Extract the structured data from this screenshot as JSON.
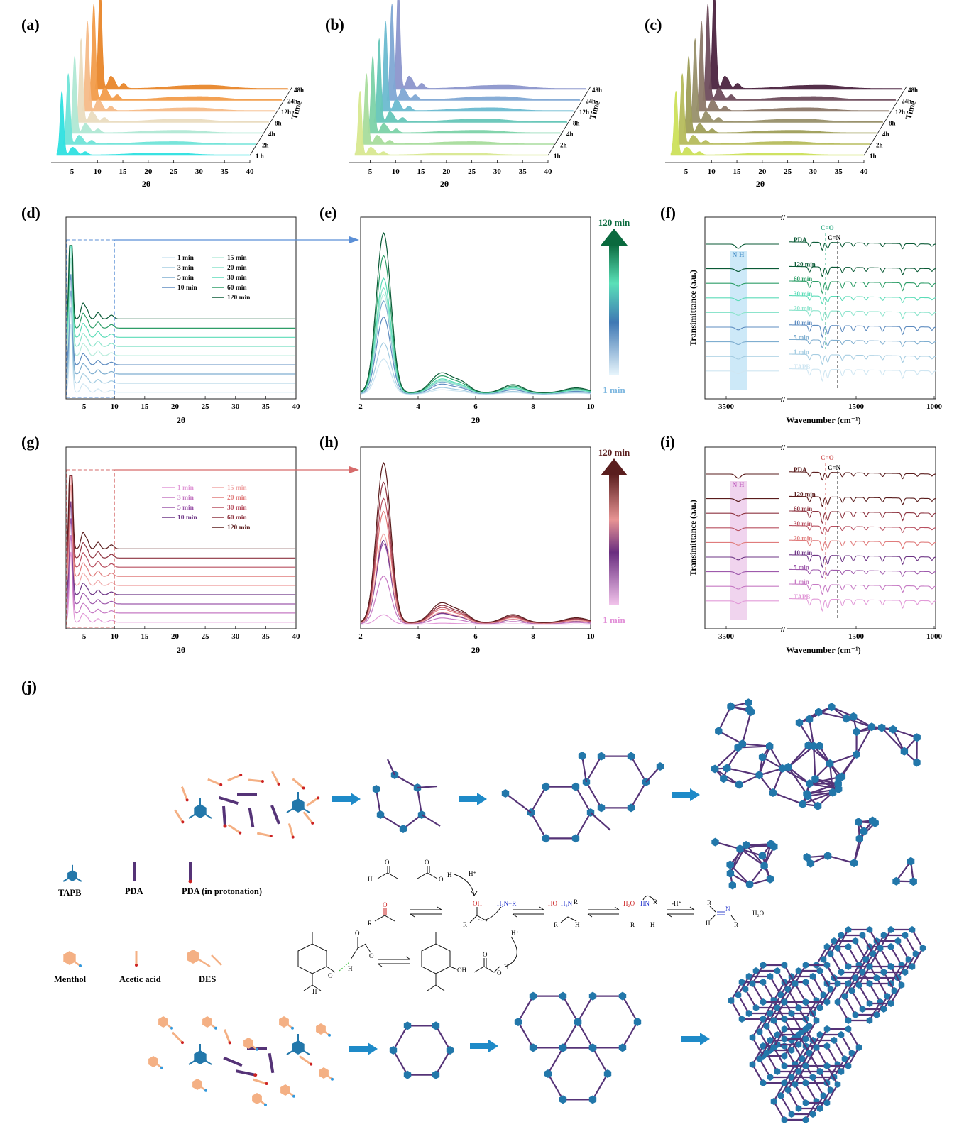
{
  "panels": {
    "a": "(a)",
    "b": "(b)",
    "c": "(c)",
    "d": "(d)",
    "e": "(e)",
    "f": "(f)",
    "g": "(g)",
    "h": "(h)",
    "i": "(i)",
    "j": "(j)"
  },
  "colors": {
    "a": [
      "#2ee0e0",
      "#70e4d8",
      "#b0e8d4",
      "#eadcc0",
      "#f6bb88",
      "#f29c4a",
      "#e8862a"
    ],
    "b": [
      "#d8e890",
      "#a8dc9c",
      "#7cd2a8",
      "#66c6b8",
      "#6cbad0",
      "#80a8d4",
      "#8c96cc"
    ],
    "c": [
      "#cce05a",
      "#b6bc5c",
      "#9e9e58",
      "#98906a",
      "#8c7868",
      "#6e4c5c",
      "#4c2440"
    ],
    "d": [
      "#cfe6f2",
      "#a6cde2",
      "#7faed0",
      "#5e8cc0",
      "#b8ecdc",
      "#8ce4cc",
      "#5cdcb8",
      "#2e9e68",
      "#0a5a36"
    ],
    "g": [
      "#e29ad8",
      "#c67ac4",
      "#9e5aac",
      "#6e3686",
      "#f0a8a8",
      "#e07c7c",
      "#b85060",
      "#8e3440",
      "#5a1c1c"
    ],
    "scheme_blue": "#2277aa",
    "scheme_purple": "#553377",
    "scheme_orange": "#f4b084",
    "scheme_arrow": "#1e8ac8"
  },
  "chart_data": [
    {
      "id": "a",
      "type": "line",
      "title": "(a)",
      "xlabel": "2θ",
      "ylabel": "Time",
      "xlim": [
        2,
        40
      ],
      "x_ticks": [
        "5",
        "10",
        "15",
        "20",
        "25",
        "30",
        "35",
        "40"
      ],
      "series": [
        {
          "name": "1 h"
        },
        {
          "name": "2h"
        },
        {
          "name": "4h"
        },
        {
          "name": "8h"
        },
        {
          "name": "12h"
        },
        {
          "name": "24h"
        },
        {
          "name": "48h"
        }
      ]
    },
    {
      "id": "b",
      "type": "line",
      "title": "(b)",
      "xlabel": "2θ",
      "ylabel": "Time",
      "xlim": [
        2,
        40
      ],
      "x_ticks": [
        "5",
        "10",
        "15",
        "20",
        "25",
        "30",
        "35",
        "40"
      ],
      "series": [
        {
          "name": "1h"
        },
        {
          "name": "2h"
        },
        {
          "name": "4h"
        },
        {
          "name": "8h"
        },
        {
          "name": "12h"
        },
        {
          "name": "24h"
        },
        {
          "name": "48h"
        }
      ]
    },
    {
      "id": "c",
      "type": "line",
      "title": "(c)",
      "xlabel": "2θ",
      "ylabel": "Time",
      "xlim": [
        2,
        40
      ],
      "x_ticks": [
        "5",
        "10",
        "15",
        "20",
        "25",
        "30",
        "35",
        "40"
      ],
      "series": [
        {
          "name": "1h"
        },
        {
          "name": "2h"
        },
        {
          "name": "4h"
        },
        {
          "name": "8h"
        },
        {
          "name": "12h"
        },
        {
          "name": "24h"
        },
        {
          "name": "48h"
        }
      ]
    },
    {
      "id": "d",
      "type": "line",
      "title": "(d)",
      "xlabel": "2θ",
      "xlim": [
        2,
        40
      ],
      "x_ticks": [
        "5",
        "10",
        "15",
        "20",
        "25",
        "30",
        "35",
        "40"
      ],
      "legend": [
        "1 min",
        "3 min",
        "5 min",
        "10 min",
        "15 min",
        "20 min",
        "30 min",
        "60 min",
        "120 min"
      ]
    },
    {
      "id": "e",
      "type": "line",
      "title": "(e)",
      "xlabel": "2θ",
      "xlim": [
        2,
        10
      ],
      "x_ticks": [
        "2",
        "4",
        "6",
        "8",
        "10"
      ],
      "scale_top": "120 min",
      "scale_bottom": "1 min",
      "peak_heights": [
        0.22,
        0.32,
        0.58,
        0.48,
        0.62,
        0.66,
        0.72,
        0.86,
        1.0
      ]
    },
    {
      "id": "f",
      "type": "line",
      "title": "(f)",
      "xlabel": "Wavenumber (cm⁻¹)",
      "ylabel": "Transimittance (a.u.)",
      "x_ticks": [
        "3500",
        "1500",
        "1000"
      ],
      "labels": [
        "PDA",
        "120 min",
        "60 min",
        "30 min",
        "20 min",
        "10 min",
        "5 min",
        "1 min",
        "TAPB"
      ],
      "annotations": [
        "N-H",
        "C=O",
        "C=N"
      ]
    },
    {
      "id": "g",
      "type": "line",
      "title": "(g)",
      "xlabel": "2θ",
      "xlim": [
        2,
        40
      ],
      "x_ticks": [
        "5",
        "10",
        "15",
        "20",
        "25",
        "30",
        "35",
        "40"
      ],
      "legend": [
        "1 min",
        "3 min",
        "5 min",
        "10 min",
        "15 min",
        "20 min",
        "30 min",
        "60 min",
        "120 min"
      ]
    },
    {
      "id": "h",
      "type": "line",
      "title": "(h)",
      "xlabel": "2θ",
      "xlim": [
        2,
        10
      ],
      "x_ticks": [
        "2",
        "4",
        "6",
        "8",
        "10"
      ],
      "scale_top": "120 min",
      "scale_bottom": "1 min",
      "peak_heights": [
        0.06,
        0.3,
        0.5,
        0.52,
        0.56,
        0.7,
        0.78,
        0.88,
        1.0
      ]
    },
    {
      "id": "i",
      "type": "line",
      "title": "(i)",
      "xlabel": "Wavenumber (cm⁻¹)",
      "ylabel": "Transimittance (a.u.)",
      "x_ticks": [
        "3500",
        "1500",
        "1000"
      ],
      "labels": [
        "PDA",
        "120 min",
        "60 min",
        "30 min",
        "20 min",
        "10 min",
        "5 min",
        "1 min",
        "TAPB"
      ],
      "annotations": [
        "N-H",
        "C=O",
        "C=N"
      ]
    }
  ],
  "scheme": {
    "legend": [
      "TAPB",
      "PDA",
      "PDA (in protonation)",
      "Menthol",
      "Acetic acid",
      "DES"
    ],
    "chem": {
      "H": "H",
      "O": "O",
      "R": "R",
      "OH": "OH",
      "Hplus": "H⁺",
      "minusHplus": "-H⁺",
      "H2N_R": "H₂N−R",
      "HO": "HO",
      "H2N_plus": "H₂N",
      "H2O_plus": "H₂O",
      "HN": "HN",
      "N": "N",
      "H2O": "H₂O"
    }
  }
}
